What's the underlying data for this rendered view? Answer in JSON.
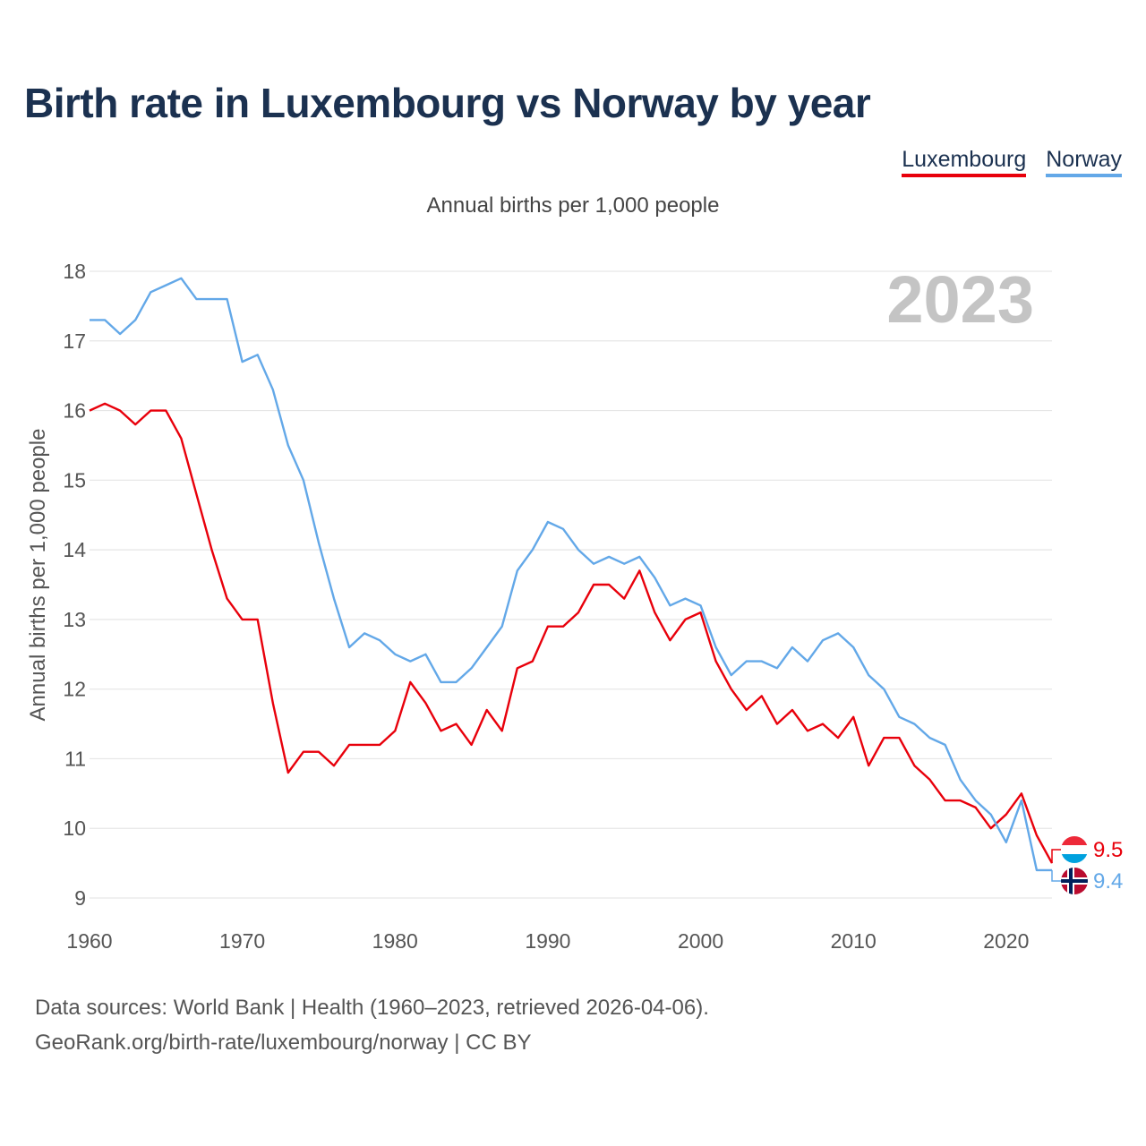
{
  "title": "Birth rate in Luxembourg vs Norway by year",
  "subtitle": "Annual births per 1,000 people",
  "legend": {
    "luxembourg": "Luxembourg",
    "norway": "Norway"
  },
  "year_label": "2023",
  "source": {
    "line1": "Data sources: World Bank | Health (1960–2023, retrieved 2026-04-06).",
    "line2": "GeoRank.org/birth-rate/luxembourg/norway | CC BY"
  },
  "colors": {
    "luxembourg": "#e8000b",
    "norway": "#63a8e8",
    "grid": "#e6e6e6",
    "title": "#1b3150"
  },
  "chart_data": {
    "type": "line",
    "title": "Birth rate in Luxembourg vs Norway by year",
    "xlabel": "",
    "ylabel": "Annual births per 1,000 people",
    "xlim": [
      1960,
      2023
    ],
    "ylim": [
      9,
      18
    ],
    "x_ticks": [
      1960,
      1970,
      1980,
      1990,
      2000,
      2010,
      2020
    ],
    "y_ticks": [
      9,
      10,
      11,
      12,
      13,
      14,
      15,
      16,
      17,
      18
    ],
    "x": [
      1960,
      1961,
      1962,
      1963,
      1964,
      1965,
      1966,
      1967,
      1968,
      1969,
      1970,
      1971,
      1972,
      1973,
      1974,
      1975,
      1976,
      1977,
      1978,
      1979,
      1980,
      1981,
      1982,
      1983,
      1984,
      1985,
      1986,
      1987,
      1988,
      1989,
      1990,
      1991,
      1992,
      1993,
      1994,
      1995,
      1996,
      1997,
      1998,
      1999,
      2000,
      2001,
      2002,
      2003,
      2004,
      2005,
      2006,
      2007,
      2008,
      2009,
      2010,
      2011,
      2012,
      2013,
      2014,
      2015,
      2016,
      2017,
      2018,
      2019,
      2020,
      2021,
      2022,
      2023
    ],
    "series": [
      {
        "name": "Luxembourg",
        "end_label": "9.5",
        "values": [
          16.0,
          16.1,
          16.0,
          15.8,
          16.0,
          16.0,
          15.6,
          14.8,
          14.0,
          13.3,
          13.0,
          13.0,
          11.8,
          10.8,
          11.1,
          11.1,
          10.9,
          11.2,
          11.2,
          11.2,
          11.4,
          12.1,
          11.8,
          11.4,
          11.5,
          11.2,
          11.7,
          11.4,
          12.3,
          12.4,
          12.9,
          12.9,
          13.1,
          13.5,
          13.5,
          13.3,
          13.7,
          13.1,
          12.7,
          13.0,
          13.1,
          12.4,
          12.0,
          11.7,
          11.9,
          11.5,
          11.7,
          11.4,
          11.5,
          11.3,
          11.6,
          10.9,
          11.3,
          11.3,
          10.9,
          10.7,
          10.4,
          10.4,
          10.3,
          10.0,
          10.2,
          10.5,
          9.9,
          9.5
        ]
      },
      {
        "name": "Norway",
        "end_label": "9.4",
        "values": [
          17.3,
          17.3,
          17.1,
          17.3,
          17.7,
          17.8,
          17.9,
          17.6,
          17.6,
          17.6,
          16.7,
          16.8,
          16.3,
          15.5,
          15.0,
          14.1,
          13.3,
          12.6,
          12.8,
          12.7,
          12.5,
          12.4,
          12.5,
          12.1,
          12.1,
          12.3,
          12.6,
          12.9,
          13.7,
          14.0,
          14.4,
          14.3,
          14.0,
          13.8,
          13.9,
          13.8,
          13.9,
          13.6,
          13.2,
          13.3,
          13.2,
          12.6,
          12.2,
          12.4,
          12.4,
          12.3,
          12.6,
          12.4,
          12.7,
          12.8,
          12.6,
          12.2,
          12.0,
          11.6,
          11.5,
          11.3,
          11.2,
          10.7,
          10.4,
          10.2,
          9.8,
          10.4,
          9.4,
          9.4
        ]
      }
    ]
  }
}
